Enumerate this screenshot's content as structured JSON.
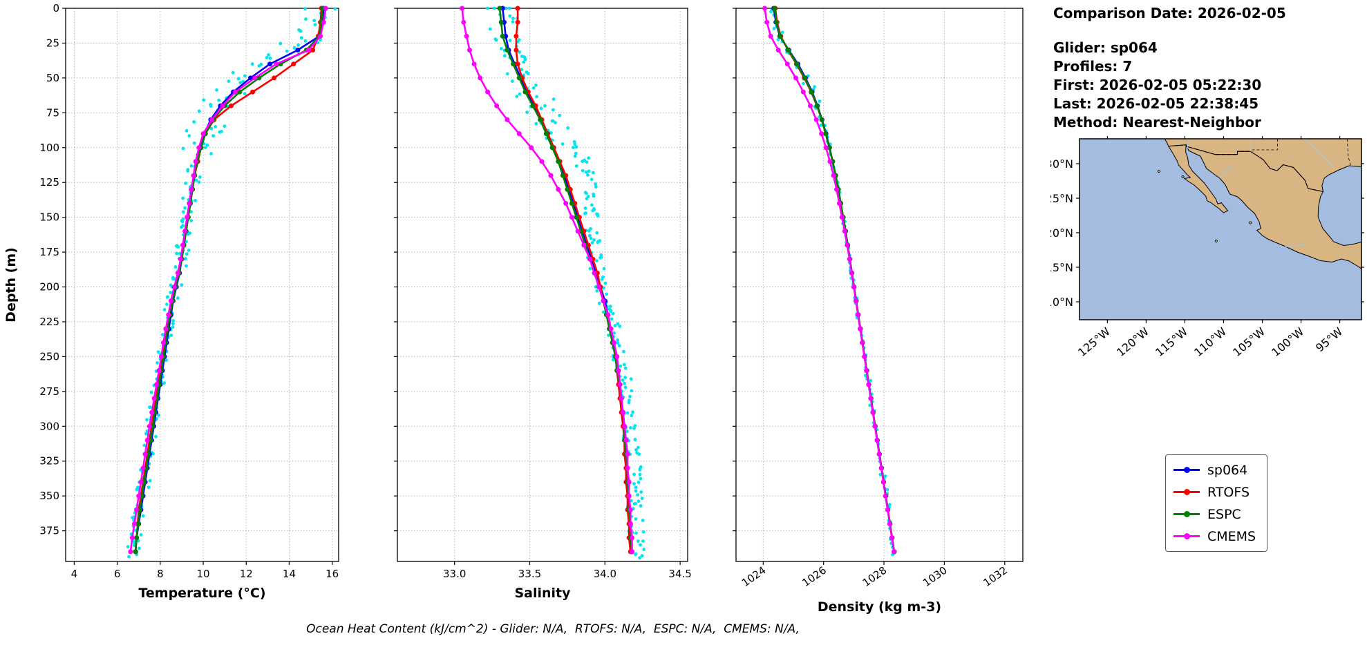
{
  "info_panel": {
    "lines": [
      "Comparison Date: 2026-02-05",
      "Glider: sp064",
      "Profiles: 7",
      "First: 2026-02-05 05:22:30",
      "Last: 2026-02-05 22:38:45",
      "Method: Nearest-Neighbor"
    ]
  },
  "footer_note": "Ocean Heat Content (kJ/cm^2) - Glider: N/A,  RTOFS: N/A,  ESPC: N/A,  CMEMS: N/A,",
  "legend": {
    "entries": [
      {
        "label": "sp064",
        "color": "#0000ff"
      },
      {
        "label": "RTOFS",
        "color": "#ff0000"
      },
      {
        "label": "ESPC",
        "color": "#008000"
      },
      {
        "label": "CMEMS",
        "color": "#ff00ff"
      }
    ]
  },
  "map": {
    "ocean_color": "#a4bcdf",
    "land_color": "#d9b583",
    "river_color": "#9ec9ea",
    "lat_ticks": [
      {
        "value": 30,
        "label": "30°N"
      },
      {
        "value": 25,
        "label": "25°N"
      },
      {
        "value": 20,
        "label": "20°N"
      },
      {
        "value": 15,
        "label": "15°N"
      },
      {
        "value": 10,
        "label": "10°N"
      }
    ],
    "lon_ticks": [
      {
        "value": -125,
        "label": "125°W"
      },
      {
        "value": -120,
        "label": "120°W"
      },
      {
        "value": -115,
        "label": "115°W"
      },
      {
        "value": -110,
        "label": "110°W"
      },
      {
        "value": -105,
        "label": "105°W"
      },
      {
        "value": -100,
        "label": "100°W"
      },
      {
        "value": -95,
        "label": "95°W"
      }
    ]
  },
  "chart_data": [
    {
      "id": "temperature",
      "type": "line",
      "title": "",
      "xlabel": "Temperature (°C)",
      "ylabel": "Depth (m)",
      "xlim": [
        3.6,
        16.3
      ],
      "ylim": [
        0,
        397
      ],
      "xticks": [
        4,
        6,
        8,
        10,
        12,
        14,
        16
      ],
      "xtick_labels": [
        "4",
        "6",
        "8",
        "10",
        "12",
        "14",
        "16"
      ],
      "yticks": [
        0,
        25,
        50,
        75,
        100,
        125,
        150,
        175,
        200,
        225,
        250,
        275,
        300,
        325,
        350,
        375
      ],
      "rotate_xticks": false,
      "grid": true,
      "depths": [
        0,
        10,
        20,
        30,
        40,
        50,
        60,
        70,
        80,
        90,
        100,
        110,
        120,
        130,
        140,
        150,
        160,
        170,
        180,
        190,
        200,
        210,
        220,
        230,
        240,
        250,
        260,
        270,
        280,
        290,
        300,
        310,
        320,
        330,
        340,
        350,
        360,
        370,
        380,
        390
      ],
      "series": [
        {
          "name": "sp064",
          "color": "#0000ff",
          "values": [
            15.6,
            15.55,
            15.4,
            14.4,
            13.1,
            12.2,
            11.4,
            10.8,
            10.35,
            10.05,
            9.85,
            9.7,
            9.6,
            9.5,
            9.4,
            9.3,
            9.2,
            9.1,
            9.0,
            8.9,
            8.75,
            8.6,
            8.5,
            8.4,
            8.3,
            8.2,
            8.1,
            8.0,
            7.9,
            7.8,
            7.7,
            7.6,
            7.5,
            7.4,
            7.3,
            7.2,
            7.1,
            7.0,
            6.9,
            6.85
          ]
        },
        {
          "name": "RTOFS",
          "color": "#ff0000",
          "values": [
            15.5,
            15.45,
            15.35,
            15.1,
            14.2,
            13.3,
            12.3,
            11.3,
            10.5,
            10.1,
            9.9,
            9.75,
            9.6,
            9.5,
            9.4,
            9.3,
            9.2,
            9.1,
            9.0,
            8.85,
            8.7,
            8.55,
            8.4,
            8.3,
            8.2,
            8.1,
            8.0,
            7.9,
            7.8,
            7.7,
            7.6,
            7.5,
            7.4,
            7.3,
            7.2,
            7.1,
            7.0,
            6.95,
            6.9,
            6.85
          ]
        },
        {
          "name": "ESPC",
          "color": "#008000",
          "values": [
            15.55,
            15.5,
            15.4,
            14.8,
            13.6,
            12.6,
            11.7,
            11.0,
            10.45,
            10.1,
            9.9,
            9.72,
            9.6,
            9.5,
            9.4,
            9.3,
            9.2,
            9.1,
            9.0,
            8.88,
            8.72,
            8.58,
            8.45,
            8.35,
            8.25,
            8.15,
            8.05,
            7.95,
            7.85,
            7.75,
            7.65,
            7.55,
            7.45,
            7.35,
            7.25,
            7.15,
            7.05,
            6.98,
            6.9,
            6.85
          ]
        },
        {
          "name": "CMEMS",
          "color": "#ff00ff",
          "values": [
            15.7,
            15.6,
            15.45,
            14.9,
            13.4,
            12.4,
            11.5,
            10.9,
            10.4,
            10.0,
            9.8,
            9.65,
            9.55,
            9.45,
            9.35,
            9.25,
            9.15,
            9.05,
            8.95,
            8.82,
            8.65,
            8.5,
            8.38,
            8.26,
            8.15,
            8.05,
            7.94,
            7.83,
            7.72,
            7.61,
            7.5,
            7.4,
            7.3,
            7.2,
            7.1,
            7.0,
            6.9,
            6.8,
            6.7,
            6.62
          ]
        }
      ],
      "scatter": {
        "name": "glider-raw",
        "color": "#00e5ee",
        "jitter_x": 0.3,
        "jitter_y": 5,
        "per_level": 6,
        "shallow_boost": 3,
        "seed": 11,
        "values": [
          15.5,
          15.35,
          14.9,
          13.8,
          12.7,
          12.0,
          11.3,
          10.7,
          10.3,
          10.0,
          9.8,
          9.65,
          9.55,
          9.45,
          9.35,
          9.25,
          9.15,
          9.05,
          8.95,
          8.85,
          8.7,
          8.55,
          8.45,
          8.35,
          8.25,
          8.15,
          8.05,
          7.95,
          7.85,
          7.75,
          7.65,
          7.55,
          7.45,
          7.35,
          7.25,
          7.15,
          7.05,
          6.95,
          6.85,
          6.8
        ]
      }
    },
    {
      "id": "salinity",
      "type": "line",
      "title": "",
      "xlabel": "Salinity",
      "ylabel": "",
      "xlim": [
        32.62,
        34.55
      ],
      "ylim": [
        0,
        397
      ],
      "xticks": [
        33.0,
        33.5,
        34.0,
        34.5
      ],
      "xtick_labels": [
        "33.0",
        "33.5",
        "34.0",
        "34.5"
      ],
      "yticks": [
        0,
        25,
        50,
        75,
        100,
        125,
        150,
        175,
        200,
        225,
        250,
        275,
        300,
        325,
        350,
        375
      ],
      "rotate_xticks": false,
      "grid": true,
      "depths": [
        0,
        10,
        20,
        30,
        40,
        50,
        60,
        70,
        80,
        90,
        100,
        110,
        120,
        130,
        140,
        150,
        160,
        170,
        180,
        190,
        200,
        210,
        220,
        230,
        240,
        250,
        260,
        270,
        280,
        290,
        300,
        310,
        320,
        330,
        340,
        350,
        360,
        370,
        380,
        390
      ],
      "series": [
        {
          "name": "sp064",
          "color": "#0000ff",
          "values": [
            33.32,
            33.33,
            33.34,
            33.36,
            33.4,
            33.44,
            33.48,
            33.53,
            33.58,
            33.62,
            33.66,
            33.7,
            33.73,
            33.76,
            33.79,
            33.82,
            33.85,
            33.88,
            33.91,
            33.94,
            33.97,
            34.0,
            34.02,
            34.04,
            34.06,
            34.08,
            34.09,
            34.1,
            34.11,
            34.12,
            34.13,
            34.14,
            34.14,
            34.15,
            34.15,
            34.16,
            34.16,
            34.17,
            34.17,
            34.18
          ]
        },
        {
          "name": "RTOFS",
          "color": "#ff0000",
          "values": [
            33.42,
            33.42,
            33.41,
            33.41,
            33.42,
            33.45,
            33.49,
            33.54,
            33.58,
            33.62,
            33.66,
            33.7,
            33.74,
            33.77,
            33.8,
            33.83,
            33.86,
            33.89,
            33.92,
            33.95,
            33.97,
            33.99,
            34.01,
            34.03,
            34.05,
            34.07,
            34.08,
            34.09,
            34.1,
            34.11,
            34.12,
            34.13,
            34.13,
            34.14,
            34.14,
            34.15,
            34.15,
            34.16,
            34.16,
            34.17
          ]
        },
        {
          "name": "ESPC",
          "color": "#008000",
          "values": [
            33.3,
            33.31,
            33.32,
            33.35,
            33.39,
            33.43,
            33.47,
            33.52,
            33.57,
            33.61,
            33.65,
            33.69,
            33.72,
            33.75,
            33.78,
            33.81,
            33.84,
            33.87,
            33.9,
            33.93,
            33.96,
            33.99,
            34.01,
            34.03,
            34.05,
            34.07,
            34.08,
            34.1,
            34.11,
            34.12,
            34.13,
            34.13,
            34.14,
            34.15,
            34.15,
            34.16,
            34.16,
            34.17,
            34.17,
            34.18
          ]
        },
        {
          "name": "CMEMS",
          "color": "#ff00ff",
          "values": [
            33.05,
            33.06,
            33.08,
            33.1,
            33.13,
            33.17,
            33.22,
            33.28,
            33.35,
            33.43,
            33.51,
            33.58,
            33.64,
            33.69,
            33.74,
            33.78,
            33.82,
            33.86,
            33.9,
            33.93,
            33.96,
            33.99,
            34.02,
            34.04,
            34.06,
            34.08,
            34.09,
            34.1,
            34.11,
            34.12,
            34.13,
            34.14,
            34.15,
            34.15,
            34.16,
            34.16,
            34.17,
            34.17,
            34.18,
            34.18
          ]
        }
      ],
      "scatter": {
        "name": "glider-raw",
        "color": "#00e5ee",
        "jitter_x": 0.05,
        "jitter_y": 5,
        "per_level": 6,
        "shallow_boost": 2,
        "seed": 23,
        "values": [
          33.3,
          33.32,
          33.34,
          33.37,
          33.41,
          33.45,
          33.5,
          33.56,
          33.63,
          33.71,
          33.79,
          33.85,
          33.89,
          33.91,
          33.91,
          33.91,
          33.91,
          33.92,
          33.93,
          33.95,
          33.98,
          34.01,
          34.04,
          34.06,
          34.08,
          34.1,
          34.12,
          34.13,
          34.14,
          34.15,
          34.16,
          34.17,
          34.18,
          34.19,
          34.19,
          34.2,
          34.2,
          34.21,
          34.21,
          34.21
        ]
      }
    },
    {
      "id": "density",
      "type": "line",
      "title": "",
      "xlabel": "Density (kg m-3)",
      "ylabel": "",
      "xlim": [
        1023.1,
        1032.6
      ],
      "ylim": [
        0,
        397
      ],
      "xticks": [
        1024,
        1026,
        1028,
        1030,
        1032
      ],
      "xtick_labels": [
        "1024",
        "1026",
        "1028",
        "1030",
        "1032"
      ],
      "yticks": [
        0,
        25,
        50,
        75,
        100,
        125,
        150,
        175,
        200,
        225,
        250,
        275,
        300,
        325,
        350,
        375
      ],
      "rotate_xticks": true,
      "grid": true,
      "depths": [
        0,
        10,
        20,
        30,
        40,
        50,
        60,
        70,
        80,
        90,
        100,
        110,
        120,
        130,
        140,
        150,
        160,
        170,
        180,
        190,
        200,
        210,
        220,
        230,
        240,
        250,
        260,
        270,
        280,
        290,
        300,
        310,
        320,
        330,
        340,
        350,
        360,
        370,
        380,
        390
      ],
      "series": [
        {
          "name": "sp064",
          "color": "#0000ff",
          "values": [
            1024.35,
            1024.42,
            1024.55,
            1024.85,
            1025.15,
            1025.4,
            1025.62,
            1025.8,
            1025.95,
            1026.08,
            1026.2,
            1026.3,
            1026.4,
            1026.49,
            1026.57,
            1026.65,
            1026.73,
            1026.8,
            1026.87,
            1026.94,
            1027.01,
            1027.08,
            1027.15,
            1027.22,
            1027.29,
            1027.36,
            1027.43,
            1027.5,
            1027.57,
            1027.64,
            1027.71,
            1027.78,
            1027.85,
            1027.92,
            1027.99,
            1028.06,
            1028.13,
            1028.2,
            1028.27,
            1028.34
          ]
        },
        {
          "name": "RTOFS",
          "color": "#ff0000",
          "values": [
            1024.4,
            1024.46,
            1024.58,
            1024.82,
            1025.1,
            1025.36,
            1025.59,
            1025.78,
            1025.94,
            1026.07,
            1026.19,
            1026.3,
            1026.4,
            1026.49,
            1026.57,
            1026.65,
            1026.73,
            1026.8,
            1026.87,
            1026.94,
            1027.01,
            1027.08,
            1027.15,
            1027.22,
            1027.29,
            1027.36,
            1027.43,
            1027.5,
            1027.57,
            1027.64,
            1027.71,
            1027.78,
            1027.85,
            1027.92,
            1027.99,
            1028.06,
            1028.13,
            1028.2,
            1028.27,
            1028.34
          ]
        },
        {
          "name": "ESPC",
          "color": "#008000",
          "values": [
            1024.38,
            1024.44,
            1024.56,
            1024.84,
            1025.12,
            1025.38,
            1025.6,
            1025.79,
            1025.94,
            1026.07,
            1026.19,
            1026.3,
            1026.4,
            1026.49,
            1026.57,
            1026.65,
            1026.73,
            1026.8,
            1026.87,
            1026.94,
            1027.01,
            1027.08,
            1027.15,
            1027.22,
            1027.29,
            1027.36,
            1027.43,
            1027.5,
            1027.57,
            1027.64,
            1027.71,
            1027.78,
            1027.85,
            1027.92,
            1027.99,
            1028.06,
            1028.13,
            1028.2,
            1028.27,
            1028.34
          ]
        },
        {
          "name": "CMEMS",
          "color": "#ff00ff",
          "values": [
            1024.05,
            1024.12,
            1024.25,
            1024.5,
            1024.8,
            1025.08,
            1025.33,
            1025.56,
            1025.76,
            1025.93,
            1026.08,
            1026.21,
            1026.33,
            1026.43,
            1026.52,
            1026.61,
            1026.7,
            1026.78,
            1026.86,
            1026.93,
            1027.0,
            1027.07,
            1027.14,
            1027.21,
            1027.28,
            1027.35,
            1027.42,
            1027.49,
            1027.56,
            1027.63,
            1027.7,
            1027.77,
            1027.84,
            1027.91,
            1027.98,
            1028.05,
            1028.12,
            1028.19,
            1028.26,
            1028.33
          ]
        }
      ],
      "scatter": {
        "name": "glider-raw",
        "color": "#00e5ee",
        "jitter_x": 0.06,
        "jitter_y": 5,
        "per_level": 3,
        "shallow_boost": 1.6,
        "seed": 37,
        "values": [
          1024.35,
          1024.42,
          1024.55,
          1024.85,
          1025.15,
          1025.4,
          1025.62,
          1025.8,
          1025.95,
          1026.08,
          1026.2,
          1026.3,
          1026.4,
          1026.49,
          1026.57,
          1026.65,
          1026.73,
          1026.8,
          1026.87,
          1026.94,
          1027.01,
          1027.08,
          1027.15,
          1027.22,
          1027.29,
          1027.36,
          1027.43,
          1027.5,
          1027.57,
          1027.64,
          1027.71,
          1027.78,
          1027.85,
          1027.92,
          1027.99,
          1028.06,
          1028.13,
          1028.2,
          1028.27,
          1028.34
        ]
      }
    }
  ]
}
